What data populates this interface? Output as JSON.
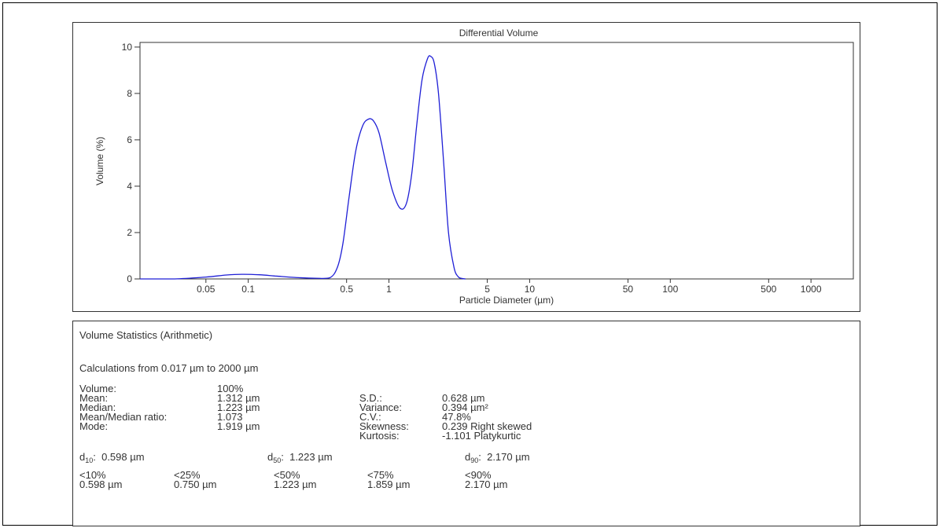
{
  "chart_data": {
    "type": "line",
    "title": "Differential Volume",
    "xlabel": "Particle Diameter (µm)",
    "ylabel": "Volume (%)",
    "x_scale": "log",
    "xlim": [
      0.017,
      2000
    ],
    "ylim": [
      0,
      10.2
    ],
    "x_ticks": [
      0.05,
      0.1,
      0.5,
      1,
      5,
      10,
      50,
      100,
      500,
      1000
    ],
    "x_tick_labels": [
      "0.05",
      "0.1",
      "0.5",
      "1",
      "5",
      "10",
      "50",
      "100",
      "500",
      "1000"
    ],
    "y_ticks": [
      0,
      2,
      4,
      6,
      8,
      10
    ],
    "y_tick_labels": [
      "0",
      "2",
      "4",
      "6",
      "8",
      "10"
    ],
    "grid": false,
    "color": "#1f1fd6",
    "series": [
      {
        "x": [
          0.017,
          0.03,
          0.05,
          0.07,
          0.09,
          0.12,
          0.16,
          0.22,
          0.3,
          0.38,
          0.43,
          0.47,
          0.52,
          0.58,
          0.65,
          0.72,
          0.78,
          0.85,
          0.95,
          1.06,
          1.2,
          1.33,
          1.45,
          1.58,
          1.72,
          1.88,
          1.98,
          2.1,
          2.25,
          2.45,
          2.65,
          2.9,
          3.1,
          3.3,
          3.5
        ],
        "y": [
          0,
          0,
          0.08,
          0.17,
          0.2,
          0.18,
          0.12,
          0.06,
          0.03,
          0.05,
          0.5,
          1.5,
          3.5,
          5.5,
          6.6,
          6.9,
          6.8,
          6.3,
          5.0,
          3.8,
          3.05,
          3.25,
          4.5,
          6.7,
          8.6,
          9.5,
          9.6,
          9.3,
          8.0,
          5.0,
          2.0,
          0.5,
          0.1,
          0.02,
          0
        ]
      }
    ]
  },
  "stats": {
    "title": "Volume Statistics (Arithmetic)",
    "range": "Calculations from 0.017 µm to 2000 µm",
    "left_labels": [
      "Volume:",
      "Mean:",
      "Median:",
      "Mean/Median ratio:",
      "Mode:"
    ],
    "left_values": [
      "100%",
      "1.312 µm",
      "1.223 µm",
      "1.073",
      "1.919 µm"
    ],
    "right_labels": [
      "S.D.:",
      "Variance:",
      "C.V.:",
      "Skewness:",
      "Kurtosis:"
    ],
    "right_values": [
      "0.628 µm",
      "0.394 µm²",
      "47.8%",
      "0.239 Right skewed",
      "-1.101 Platykurtic"
    ],
    "d10_label": "d",
    "d10_sub": "10",
    "d10_value": "0.598 µm",
    "d50_label": "d",
    "d50_sub": "50",
    "d50_value": "1.223 µm",
    "d90_label": "d",
    "d90_sub": "90",
    "d90_value": "2.170 µm",
    "percentiles": [
      {
        "label": "<10%",
        "value": "0.598 µm"
      },
      {
        "label": "<25%",
        "value": "0.750 µm"
      },
      {
        "label": "<50%",
        "value": "1.223 µm"
      },
      {
        "label": "<75%",
        "value": "1.859 µm"
      },
      {
        "label": "<90%",
        "value": "2.170 µm"
      }
    ]
  }
}
